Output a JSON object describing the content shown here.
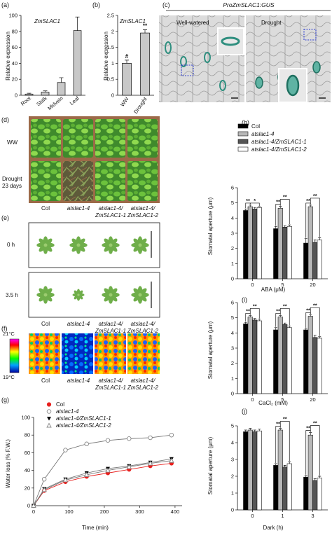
{
  "panels": {
    "a": {
      "letter": "(a)"
    },
    "b": {
      "letter": "(b)"
    },
    "c": {
      "letter": "(c)",
      "header": "ProZmSLAC1:GUS",
      "left_label": "Well-watered",
      "right_label": "Drought"
    },
    "d": {
      "letter": "(d)",
      "row1": "WW",
      "row2a": "Drought",
      "row2b": "23 days",
      "cols": [
        [
          "Col"
        ],
        [
          "atslac1-4"
        ],
        [
          "atslac1-4/",
          "ZmSLAC1-1"
        ],
        [
          "atslac1-4/",
          "ZmSLAC1-2"
        ]
      ]
    },
    "e": {
      "letter": "(e)",
      "row1": "0 h",
      "row2": "3.5 h",
      "cols": [
        [
          "Col"
        ],
        [
          "atslac1-4"
        ],
        [
          "atslac1-4/",
          "ZmSLAC1-1"
        ],
        [
          "atslac1-4/",
          "ZmSLAC1-2"
        ]
      ]
    },
    "f": {
      "letter": "(f)",
      "scale_top": "21°C",
      "scale_bottom": "19°C",
      "cols": [
        [
          "Col"
        ],
        [
          "atslac1-4"
        ],
        [
          "atslac1-4/",
          "ZmSLAC1-1"
        ],
        [
          "atslac1-4/",
          "ZmSLAC1-2"
        ]
      ]
    },
    "g": {
      "letter": "(g)"
    },
    "h": {
      "letter": "(h)"
    },
    "i": {
      "letter": "(i)"
    },
    "j": {
      "letter": "(j)"
    }
  },
  "legend_h": [
    "Col",
    "atslac1-4",
    "atslac1-4/ZmSLAC1-1",
    "atslac1-4/ZmSLAC1-2"
  ],
  "colors": {
    "col": "#000000",
    "slac": "#b8b8b8",
    "z1": "#555555",
    "z2": "#ffffff",
    "red": "#e8201e"
  },
  "chart_data": [
    {
      "id": "a",
      "type": "bar",
      "title": "ZmSLAC1",
      "ylabel": "Relative expression",
      "categories": [
        "Root",
        "Stalk",
        "Midvein",
        "Leaf"
      ],
      "values": [
        1.5,
        4,
        16,
        81
      ],
      "errors": [
        1,
        1.5,
        6,
        17
      ],
      "ylim": [
        0,
        100
      ],
      "yticks": [
        0,
        20,
        40,
        60,
        80,
        100
      ]
    },
    {
      "id": "b",
      "type": "bar",
      "title": "ZmSLAC1",
      "ylabel": "Relative expression",
      "categories": [
        "WW",
        "Drought"
      ],
      "values": [
        1.0,
        1.95
      ],
      "errors": [
        0.1,
        0.1
      ],
      "annotations": [
        "#",
        "**"
      ],
      "ylim": [
        0,
        2.5
      ],
      "yticks": [
        0,
        0.5,
        1,
        1.5,
        2,
        2.5
      ],
      "ytick_labels": [
        "0",
        "0.5",
        "1",
        "1.5",
        "2",
        "2.5"
      ]
    },
    {
      "id": "g",
      "type": "line",
      "xlabel": "Time (min)",
      "ylabel": "Water loss (% F.W.)",
      "xlim": [
        0,
        420
      ],
      "ylim": [
        0,
        100
      ],
      "xticks": [
        0,
        100,
        200,
        300,
        400
      ],
      "yticks": [
        0,
        20,
        40,
        60,
        80,
        100
      ],
      "x": [
        0,
        30,
        90,
        150,
        210,
        270,
        330,
        390
      ],
      "legend": "top-left",
      "series": [
        {
          "name": "Col",
          "marker": "circle-filled",
          "color": "#e8201e",
          "values": [
            0,
            17,
            27,
            33,
            37,
            41,
            45,
            48
          ]
        },
        {
          "name": "atslac1-4",
          "marker": "circle-open",
          "color": "#888888",
          "values": [
            0,
            30,
            63,
            70,
            74,
            76,
            77,
            80
          ]
        },
        {
          "name": "atslac1-4/ZmSLAC1-1",
          "marker": "triangle-down",
          "color": "#000000",
          "values": [
            0,
            19,
            30,
            37,
            42,
            45,
            49,
            53
          ]
        },
        {
          "name": "atslac1-4/ZmSLAC1-2",
          "marker": "triangle-up-open",
          "color": "#888888",
          "values": [
            0,
            18,
            29,
            35,
            40,
            44,
            48,
            51
          ]
        }
      ]
    },
    {
      "id": "h",
      "type": "bar",
      "xlabel": "ABA (μM)",
      "ylabel": "Stomatal aperture (μm)",
      "categories": [
        "0",
        "5",
        "20"
      ],
      "ylim": [
        0,
        6
      ],
      "yticks": [
        0,
        1,
        2,
        3,
        4,
        5,
        6
      ],
      "legend": "top",
      "series": [
        {
          "name": "Col",
          "values": [
            4.5,
            3.3,
            2.35
          ],
          "errors": [
            0.1,
            0.15,
            0.3
          ]
        },
        {
          "name": "atslac1-4",
          "values": [
            4.75,
            4.65,
            4.75
          ],
          "errors": [
            0.1,
            0.12,
            0.1
          ]
        },
        {
          "name": "atslac1-4/ZmSLAC1-1",
          "values": [
            4.6,
            3.4,
            2.4
          ],
          "errors": [
            0.1,
            0.1,
            0.15
          ]
        },
        {
          "name": "atslac1-4/ZmSLAC1-2",
          "values": [
            4.7,
            3.45,
            2.55
          ],
          "errors": [
            0.05,
            0.1,
            0.15
          ]
        }
      ],
      "significance": [
        "**",
        "*",
        "**",
        "**",
        "**",
        "**"
      ]
    },
    {
      "id": "i",
      "type": "bar",
      "xlabel": "CaCl₂ (mM)",
      "ylabel": "Stomatal aperture (μm)",
      "categories": [
        "0",
        "5",
        "20"
      ],
      "ylim": [
        0,
        6
      ],
      "yticks": [
        0,
        1,
        2,
        3,
        4,
        5,
        6
      ],
      "series": [
        {
          "name": "Col",
          "values": [
            4.6,
            4.2,
            4.2
          ],
          "errors": [
            0.1,
            0.15,
            0.1
          ]
        },
        {
          "name": "atslac1-4",
          "values": [
            5.05,
            5.05,
            5.1
          ],
          "errors": [
            0.1,
            0.1,
            0.1
          ]
        },
        {
          "name": "atslac1-4/ZmSLAC1-1",
          "values": [
            4.85,
            4.55,
            3.7
          ],
          "errors": [
            0.1,
            0.1,
            0.15
          ]
        },
        {
          "name": "atslac1-4/ZmSLAC1-2",
          "values": [
            4.8,
            4.35,
            3.65
          ],
          "errors": [
            0.1,
            0.1,
            0.1
          ]
        }
      ],
      "significance": [
        "**",
        "**",
        "**",
        "**",
        "**",
        "**"
      ]
    },
    {
      "id": "j",
      "type": "bar",
      "xlabel": "Dark (h)",
      "ylabel": "Stomatal aperture (μm)",
      "categories": [
        "0",
        "1",
        "3"
      ],
      "ylim": [
        0,
        5
      ],
      "yticks": [
        0,
        1,
        2,
        3,
        4,
        5
      ],
      "series": [
        {
          "name": "Col",
          "values": [
            4.65,
            2.65,
            1.95
          ],
          "errors": [
            0.1,
            0.1,
            0.1
          ]
        },
        {
          "name": "atslac1-4",
          "values": [
            4.75,
            4.75,
            4.45
          ],
          "errors": [
            0.1,
            0.1,
            0.15
          ]
        },
        {
          "name": "atslac1-4/ZmSLAC1-1",
          "values": [
            4.65,
            2.55,
            1.75
          ],
          "errors": [
            0.1,
            0.1,
            0.1
          ]
        },
        {
          "name": "atslac1-4/ZmSLAC1-2",
          "values": [
            4.7,
            2.75,
            1.9
          ],
          "errors": [
            0.1,
            0.1,
            0.1
          ]
        }
      ],
      "significance": [
        "**",
        "**",
        "**",
        "**"
      ]
    }
  ]
}
